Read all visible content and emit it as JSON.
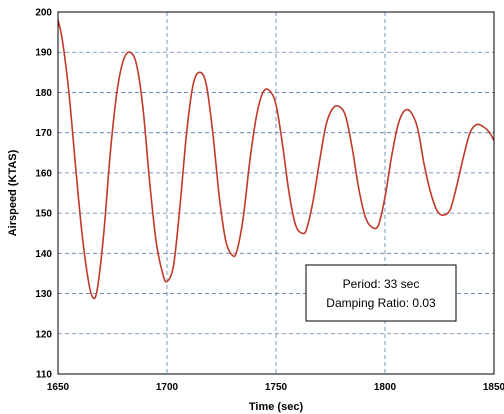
{
  "chart_data": {
    "type": "line",
    "xlabel": "Time (sec)",
    "ylabel": "Airspeed (KTAS)",
    "xlim": [
      1650,
      1850
    ],
    "ylim": [
      110,
      200
    ],
    "xticks": [
      1650,
      1700,
      1750,
      1800,
      1850
    ],
    "yticks": [
      110,
      120,
      130,
      140,
      150,
      160,
      170,
      180,
      190,
      200
    ],
    "grid": {
      "x": true,
      "y": true,
      "style": "dashed"
    },
    "series": [
      {
        "color": "#c0392b",
        "x": [
          1650,
          1652,
          1655,
          1658,
          1661,
          1664,
          1666,
          1668,
          1671,
          1674,
          1677,
          1680,
          1683,
          1686,
          1689,
          1692,
          1695,
          1698,
          1700,
          1703,
          1706,
          1709,
          1712,
          1715,
          1718,
          1721,
          1724,
          1727,
          1730,
          1732,
          1735,
          1738,
          1741,
          1744,
          1747,
          1750,
          1753,
          1756,
          1759,
          1762,
          1764,
          1767,
          1770,
          1773,
          1776,
          1779,
          1782,
          1785,
          1788,
          1791,
          1794,
          1797,
          1800,
          1803,
          1806,
          1809,
          1812,
          1815,
          1818,
          1821,
          1824,
          1827,
          1830,
          1833,
          1836,
          1839,
          1842,
          1845,
          1848,
          1850
        ],
        "y": [
          198,
          193,
          180,
          162,
          145,
          133,
          129,
          131,
          145,
          165,
          180,
          188,
          190,
          187,
          176,
          158,
          143,
          135,
          133,
          137,
          152,
          170,
          182,
          185,
          182,
          170,
          154,
          143,
          139.5,
          140.5,
          149,
          163,
          174,
          180,
          180.5,
          177,
          167,
          155,
          147,
          145,
          146,
          153,
          163,
          172,
          176,
          176.5,
          174,
          166,
          156,
          149,
          146.5,
          147,
          154,
          164,
          172,
          175.5,
          175,
          171,
          162,
          155,
          150.5,
          149.5,
          151,
          157,
          164,
          170,
          172,
          171.5,
          170,
          168
        ]
      }
    ],
    "annotation": {
      "period_text": "Period:  33 sec",
      "damping_text": "Damping Ratio:  0.03"
    }
  }
}
